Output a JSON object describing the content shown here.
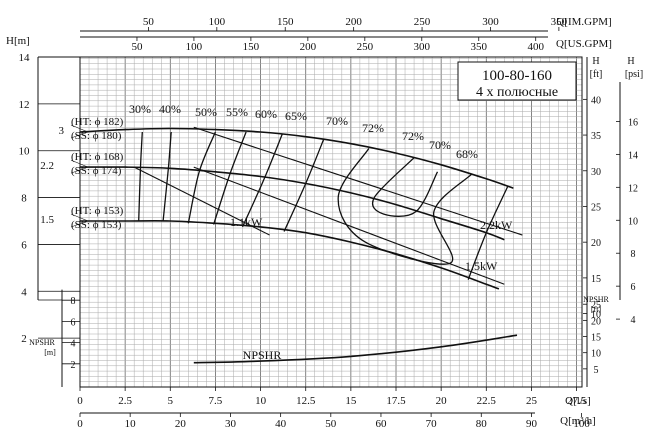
{
  "chart_data": {
    "type": "line",
    "model": "100-80-160",
    "subtitle": "4 х полюсные",
    "y_main": {
      "label": "H[m]",
      "min": 0,
      "max": 14,
      "ticks": [
        2,
        4,
        6,
        8,
        10,
        12,
        14
      ]
    },
    "y_npshr": {
      "label": [
        "NPSHR",
        "[m]"
      ],
      "min": 0,
      "max": 10,
      "ticks": [
        2,
        4,
        6,
        8
      ]
    },
    "x_ls": {
      "label": "Q[l/s]",
      "min": 0,
      "max": 27.8,
      "ticks": [
        0,
        2.5,
        5,
        7.5,
        10,
        12.5,
        15,
        17.5,
        20,
        22.5,
        25,
        27.5
      ]
    },
    "x_m3h": {
      "label": "Q[m³/h]",
      "ticks": [
        0,
        10,
        20,
        30,
        40,
        50,
        60,
        70,
        80,
        90,
        100
      ]
    },
    "x_imp_gpm": {
      "label": "Q[IM.GPM]",
      "ticks": [
        50,
        100,
        150,
        200,
        250,
        300,
        350
      ]
    },
    "x_us_gpm": {
      "label": "Q[US.GPM]",
      "ticks": [
        50,
        100,
        150,
        200,
        250,
        300,
        350,
        400
      ]
    },
    "right_ft": {
      "label": [
        "H",
        "[ft]"
      ],
      "ticks": [
        10,
        15,
        20,
        25,
        30,
        35,
        40
      ]
    },
    "right_psi": {
      "label": [
        "H",
        "[psi]"
      ],
      "ticks": [
        4,
        6,
        8,
        10,
        12,
        14,
        16
      ]
    },
    "npshr_ft": {
      "label": [
        "NPSHR",
        "[ft]"
      ],
      "ticks": [
        5,
        10,
        15,
        20,
        25
      ]
    },
    "impellers": [
      {
        "index": "3",
        "ht": "(HT: ϕ 182)",
        "ss": "(SS: ϕ 180)",
        "points": [
          [
            0,
            10.8
          ],
          [
            2.5,
            10.9
          ],
          [
            5,
            10.95
          ],
          [
            7.5,
            10.9
          ],
          [
            10,
            10.8
          ],
          [
            12.5,
            10.6
          ],
          [
            15,
            10.3
          ],
          [
            17.5,
            9.9
          ],
          [
            20,
            9.4
          ],
          [
            22.5,
            8.8
          ],
          [
            24,
            8.4
          ]
        ]
      },
      {
        "index": "2.2",
        "ht": "(HT: ϕ 168)",
        "ss": "(SS: ϕ 174)",
        "points": [
          [
            0,
            9.3
          ],
          [
            2.5,
            9.3
          ],
          [
            5,
            9.25
          ],
          [
            7.5,
            9.1
          ],
          [
            10,
            8.9
          ],
          [
            12.5,
            8.6
          ],
          [
            15,
            8.2
          ],
          [
            17.5,
            7.7
          ],
          [
            20,
            7.1
          ],
          [
            22.5,
            6.5
          ],
          [
            23.5,
            6.2
          ]
        ]
      },
      {
        "index": "1.5",
        "ht": "(HT: ϕ 153)",
        "ss": "(SS: ϕ 153)",
        "points": [
          [
            0,
            7.0
          ],
          [
            2.5,
            7.0
          ],
          [
            5,
            7.0
          ],
          [
            7.5,
            6.9
          ],
          [
            10,
            6.75
          ],
          [
            12.5,
            6.5
          ],
          [
            15,
            6.1
          ],
          [
            17.5,
            5.6
          ],
          [
            20,
            5.0
          ],
          [
            22.5,
            4.3
          ],
          [
            23.2,
            4.1
          ]
        ]
      }
    ],
    "power_curves": [
      {
        "label": "1.1kW",
        "points": [
          [
            3,
            9.3
          ],
          [
            10.5,
            6.4
          ]
        ]
      },
      {
        "label": "2.2kW",
        "points": [
          [
            6.3,
            11.0
          ],
          [
            24.5,
            6.4
          ]
        ]
      },
      {
        "label": "1.5kW",
        "points": [
          [
            6.3,
            9.3
          ],
          [
            23.5,
            4.3
          ]
        ]
      }
    ],
    "efficiency_labels": [
      "30%",
      "40%",
      "50%",
      "55%",
      "60%",
      "65%",
      "70%",
      "72%",
      "72%",
      "70%",
      "68%"
    ],
    "efficiency_curves": [
      {
        "label": "30%",
        "points": [
          [
            3.45,
            10.8
          ],
          [
            3.35,
            9.3
          ],
          [
            3.25,
            7.0
          ]
        ]
      },
      {
        "label": "40%",
        "points": [
          [
            5.05,
            10.8
          ],
          [
            4.9,
            9.3
          ],
          [
            4.6,
            7.0
          ]
        ]
      },
      {
        "label": "50%",
        "points": [
          [
            7.5,
            10.8
          ],
          [
            6.6,
            9.1
          ],
          [
            6.0,
            6.9
          ]
        ]
      },
      {
        "label": "55%",
        "points": [
          [
            9.2,
            10.8
          ],
          [
            8.3,
            9.0
          ],
          [
            7.4,
            6.85
          ]
        ]
      },
      {
        "label": "60%",
        "points": [
          [
            11.2,
            10.7
          ],
          [
            10.2,
            8.8
          ],
          [
            9.0,
            6.75
          ]
        ]
      },
      {
        "label": "65%",
        "points": [
          [
            13.5,
            10.5
          ],
          [
            12.5,
            8.6
          ],
          [
            11.3,
            6.55
          ]
        ]
      },
      {
        "label": "70%",
        "points": [
          [
            16.0,
            10.1
          ],
          [
            14.3,
            8.0
          ],
          [
            15.8,
            6.1
          ],
          [
            20.5,
            5.2
          ],
          [
            19.6,
            7.4
          ],
          [
            21.7,
            9.0
          ]
        ]
      },
      {
        "label": "72%",
        "points": [
          [
            18.5,
            9.7
          ],
          [
            16.3,
            8.0
          ],
          [
            16.8,
            7.3
          ],
          [
            18.6,
            7.4
          ],
          [
            19.8,
            9.1
          ]
        ]
      },
      {
        "label": "68%",
        "points": [
          [
            23.7,
            8.5
          ],
          [
            22.5,
            6.5
          ],
          [
            21.5,
            4.5
          ]
        ]
      }
    ],
    "npshr": {
      "label": "NPSHR",
      "points": [
        [
          6.3,
          2.1
        ],
        [
          10,
          2.25
        ],
        [
          15,
          2.7
        ],
        [
          20,
          3.6
        ],
        [
          24.2,
          4.7
        ]
      ]
    }
  }
}
